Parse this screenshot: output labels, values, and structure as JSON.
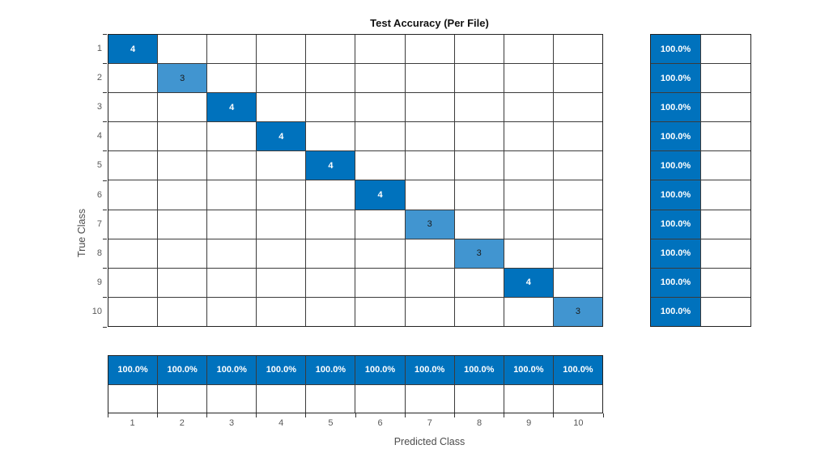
{
  "chart_data": {
    "type": "heatmap",
    "subtype": "confusion-matrix",
    "title": "Test Accuracy (Per File)",
    "xlabel": "Predicted Class",
    "ylabel": "True Class",
    "classes": [
      "1",
      "2",
      "3",
      "4",
      "5",
      "6",
      "7",
      "8",
      "9",
      "10"
    ],
    "x_tick_labels": [
      "1",
      "2",
      "3",
      "4",
      "5",
      "6",
      "7",
      "8",
      "9",
      "10"
    ],
    "y_tick_labels": [
      "1",
      "2",
      "3",
      "4",
      "5",
      "6",
      "7",
      "8",
      "9",
      "10"
    ],
    "diagonal_values": [
      4,
      3,
      4,
      4,
      4,
      4,
      3,
      3,
      4,
      3
    ],
    "off_diagonal_display": "",
    "max_value": 4,
    "row_summary": [
      "100.0%",
      "100.0%",
      "100.0%",
      "100.0%",
      "100.0%",
      "100.0%",
      "100.0%",
      "100.0%",
      "100.0%",
      "100.0%"
    ],
    "row_summary_incorrect": [
      "",
      "",
      "",
      "",
      "",
      "",
      "",
      "",
      "",
      ""
    ],
    "column_summary": [
      "100.0%",
      "100.0%",
      "100.0%",
      "100.0%",
      "100.0%",
      "100.0%",
      "100.0%",
      "100.0%",
      "100.0%",
      "100.0%"
    ],
    "column_summary_incorrect": [
      "",
      "",
      "",
      "",
      "",
      "",
      "",
      "",
      "",
      ""
    ],
    "legend_position": "none",
    "grid": true
  },
  "colors": {
    "diagonal_full": "#0072BD",
    "diagonal_partial": "#4195D0",
    "summary_fill": "#0072BD",
    "empty_cell": "#FFFFFF",
    "grid_line": "#3B3B3B",
    "tick_text": "#595959",
    "title_text": "#111111"
  }
}
